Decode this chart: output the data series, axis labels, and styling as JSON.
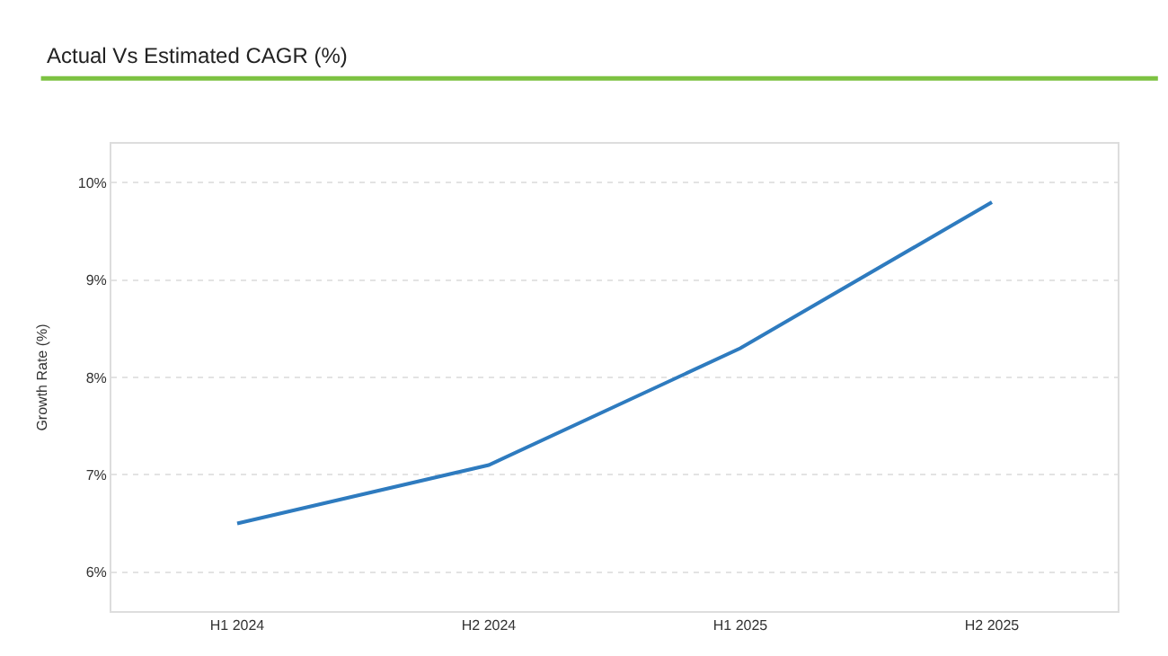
{
  "chart_data": {
    "type": "line",
    "title": "Actual Vs Estimated CAGR (%)",
    "ylabel": "Growth Rate (%)",
    "categories": [
      "H1 2024",
      "H2 2024",
      "H1 2025",
      "H2 2025"
    ],
    "series": [
      {
        "color": "#2e7bbf",
        "values": [
          6.5,
          7.1,
          8.3,
          9.8
        ]
      }
    ],
    "ylim": [
      5.6,
      10.4
    ],
    "yticks": [
      {
        "value": 6,
        "label": "6%"
      },
      {
        "value": 7,
        "label": "7%"
      },
      {
        "value": 8,
        "label": "8%"
      },
      {
        "value": 9,
        "label": "9%"
      },
      {
        "value": 10,
        "label": "10%"
      }
    ],
    "grid": "y",
    "marker": "none",
    "line_style": "solid"
  }
}
